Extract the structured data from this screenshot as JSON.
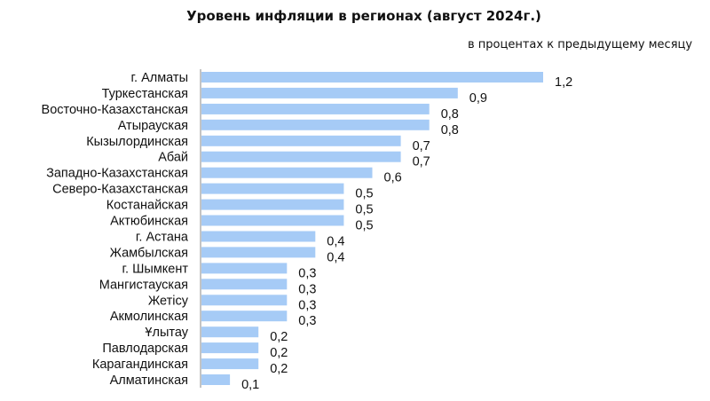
{
  "chart_data": {
    "type": "bar",
    "orientation": "horizontal",
    "title": "Уровень инфляции в регионах (август 2024г.)",
    "subtitle": "в процентах к предыдущему месяцу",
    "categories": [
      "г. Алматы",
      "Туркестанская",
      "Восточно-Казахстанская",
      "Атырауская",
      "Кызылординская",
      "Абай",
      "Западно-Казахстанская",
      "Северо-Казахстанская",
      "Костанайская",
      "Актюбинская",
      "г. Астана",
      "Жамбылская",
      "г. Шымкент",
      "Мангистауская",
      "Жетiсу",
      "Акмолинская",
      "Ұлытау",
      "Павлодарская",
      "Карагандинская",
      "Алматинская"
    ],
    "values": [
      1.2,
      0.9,
      0.8,
      0.8,
      0.7,
      0.7,
      0.6,
      0.5,
      0.5,
      0.5,
      0.4,
      0.4,
      0.3,
      0.3,
      0.3,
      0.3,
      0.2,
      0.2,
      0.2,
      0.1
    ],
    "value_labels": [
      "1,2",
      "0,9",
      "0,8",
      "0,8",
      "0,7",
      "0,7",
      "0,6",
      "0,5",
      "0,5",
      "0,5",
      "0,4",
      "0,4",
      "0,3",
      "0,3",
      "0,3",
      "0,3",
      "0,2",
      "0,2",
      "0,2",
      "0,1"
    ],
    "bar_color": "#a6cbf6",
    "axis_color": "#888888",
    "xlim": [
      0,
      1.2
    ],
    "grid": false,
    "legend": "none"
  }
}
